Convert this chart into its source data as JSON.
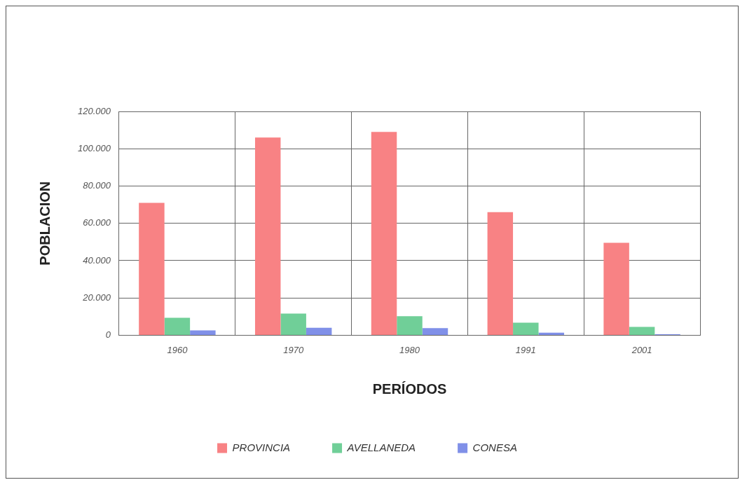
{
  "chart_data": {
    "type": "bar",
    "xlabel": "PERÍODOS",
    "ylabel": "POBLACION",
    "categories": [
      "1960",
      "1970",
      "1980",
      "1991",
      "2001"
    ],
    "series": [
      {
        "name": "PROVINCIA",
        "color": "#f88284",
        "values": [
          71000,
          106000,
          109000,
          66000,
          49600
        ]
      },
      {
        "name": "AVELLANEDA",
        "color": "#70cf98",
        "values": [
          9400,
          11600,
          10200,
          6700,
          4500
        ]
      },
      {
        "name": "CONESA",
        "color": "#8090e8",
        "values": [
          2600,
          4000,
          3800,
          1400,
          500
        ]
      }
    ],
    "ylim": [
      0,
      120000
    ],
    "yticks": [
      {
        "value": 0,
        "label": "0"
      },
      {
        "value": 20000,
        "label": "20.000"
      },
      {
        "value": 40000,
        "label": "40.000"
      },
      {
        "value": 60000,
        "label": "60.000"
      },
      {
        "value": 80000,
        "label": "80.000"
      },
      {
        "value": 100000,
        "label": "100.000"
      },
      {
        "value": 120000,
        "label": "120.000"
      }
    ],
    "grid": true,
    "legend": "bottom"
  }
}
